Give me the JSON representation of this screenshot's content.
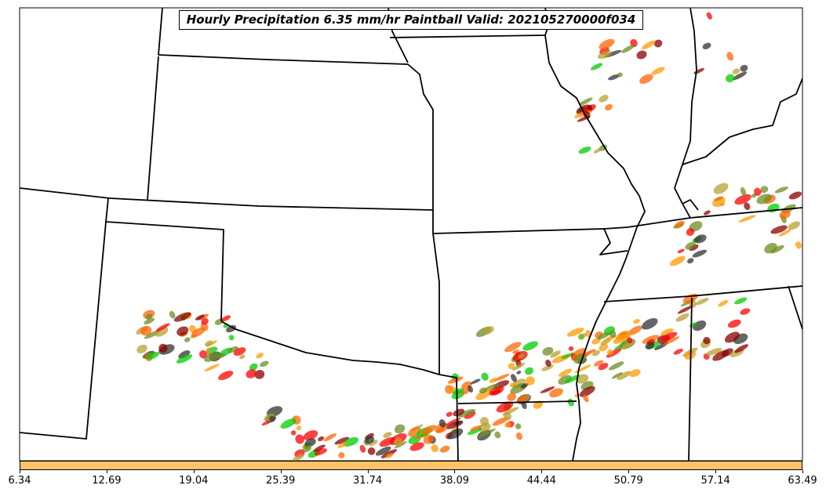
{
  "title": "Hourly Precipitation 6.35 mm/hr Paintball Valid: 202105270000f034",
  "colorbar": {
    "fill_color": "#ffc266",
    "ticks": [
      "6.34",
      "12.69",
      "19.04",
      "25.39",
      "31.74",
      "38.09",
      "44.44",
      "50.79",
      "57.14",
      "63.49"
    ]
  },
  "paintball_colors": [
    "#ff0000",
    "#ff6600",
    "#ff9900",
    "#8b0000",
    "#6b8e23",
    "#00cc00",
    "#333333",
    "#b8a030"
  ]
}
